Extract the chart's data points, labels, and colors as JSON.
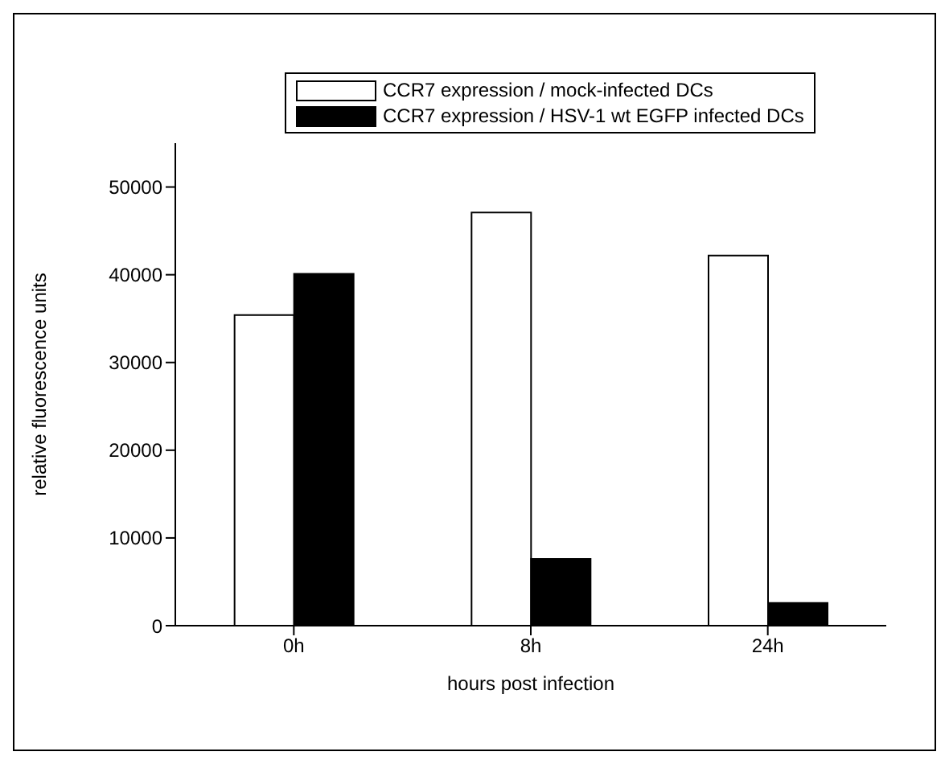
{
  "chart_data": {
    "type": "bar",
    "xlabel": "hours post infection",
    "ylabel": "relative fluorescence units",
    "categories": [
      "0h",
      "8h",
      "24h"
    ],
    "series": [
      {
        "name": "CCR7 expression / mock-infected DCs",
        "color": "#ffffff",
        "values": [
          35400,
          47100,
          42200
        ]
      },
      {
        "name": "CCR7 expression / HSV-1 wt EGFP infected DCs",
        "color": "#000000",
        "values": [
          40100,
          7600,
          2600
        ]
      }
    ],
    "ylim": [
      0,
      55000
    ],
    "yticks": [
      0,
      10000,
      20000,
      30000,
      40000,
      50000
    ],
    "grid": false,
    "legend": "top"
  }
}
